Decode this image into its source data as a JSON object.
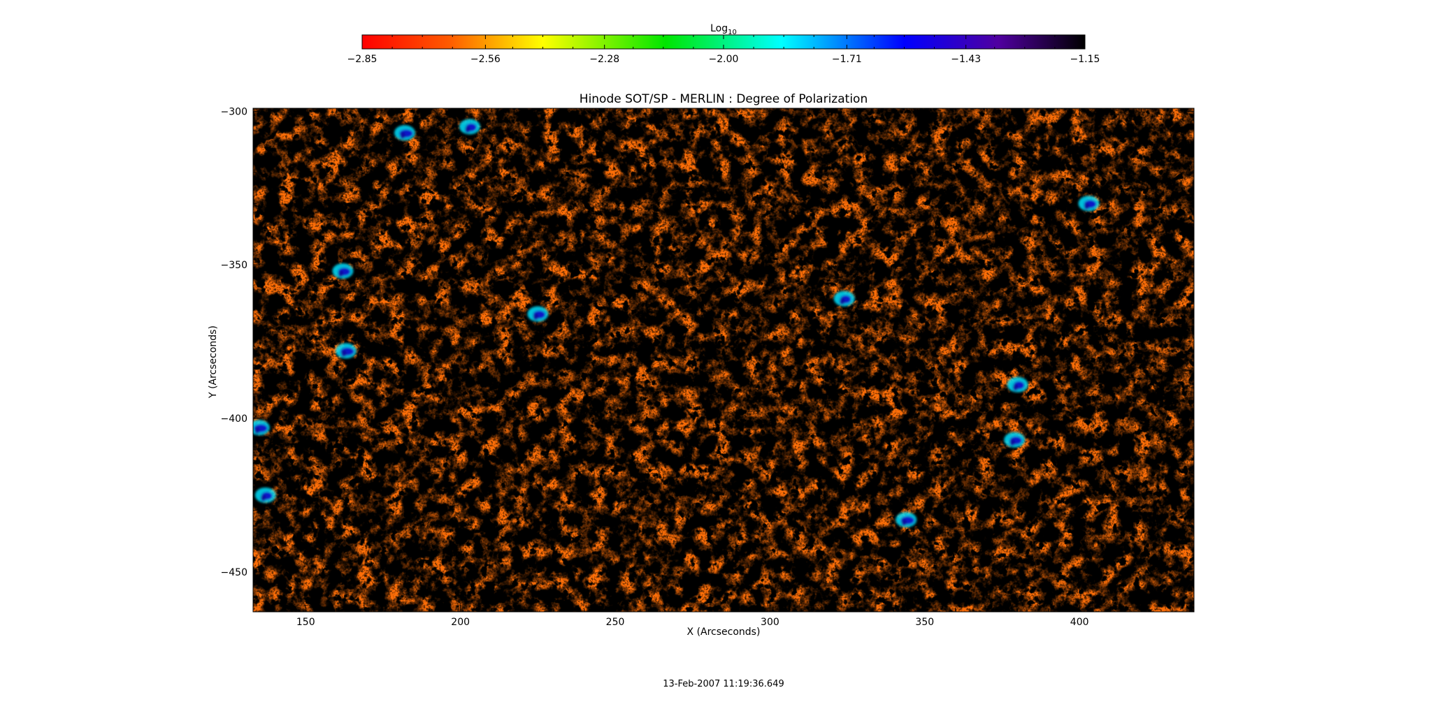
{
  "chart_data": {
    "type": "heatmap",
    "title": "Hinode SOT/SP - MERLIN : Degree of Polarization",
    "xlabel": "X (Arcseconds)",
    "ylabel": "Y (Arcseconds)",
    "xlim": [
      133,
      437
    ],
    "ylim": [
      -463,
      -299
    ],
    "x_ticks": [
      150,
      200,
      250,
      300,
      350,
      400
    ],
    "y_ticks": [
      -300,
      -350,
      -400,
      -450
    ],
    "colorbar": {
      "label_base": "Log",
      "label_sub": "10",
      "range": [
        -2.85,
        -1.15
      ],
      "ticks": [
        "-2.85",
        "-2.56",
        "-2.28",
        "-2.00",
        "-1.71",
        "-1.43",
        "-1.15"
      ],
      "colormap": "rainbow",
      "placement": "top"
    },
    "dominant_value_range": [
      -2.85,
      -2.35
    ],
    "notable_regions": [
      {
        "x": 324,
        "y": -361,
        "value": -1.45
      },
      {
        "x": 162,
        "y": -352,
        "value": -1.5
      },
      {
        "x": 182,
        "y": -307,
        "value": -1.5
      },
      {
        "x": 380,
        "y": -389,
        "value": -1.5
      },
      {
        "x": 379,
        "y": -407,
        "value": -1.5
      },
      {
        "x": 135,
        "y": -403,
        "value": -1.5
      },
      {
        "x": 137,
        "y": -425,
        "value": -1.5
      },
      {
        "x": 403,
        "y": -330,
        "value": -1.5
      },
      {
        "x": 344,
        "y": -433,
        "value": -1.5
      },
      {
        "x": 203,
        "y": -305,
        "value": -1.6
      },
      {
        "x": 225,
        "y": -366,
        "value": -1.6
      },
      {
        "x": 163,
        "y": -378,
        "value": -1.5
      }
    ]
  },
  "footer": {
    "timestamp": "13-Feb-2007 11:19:36.649"
  }
}
